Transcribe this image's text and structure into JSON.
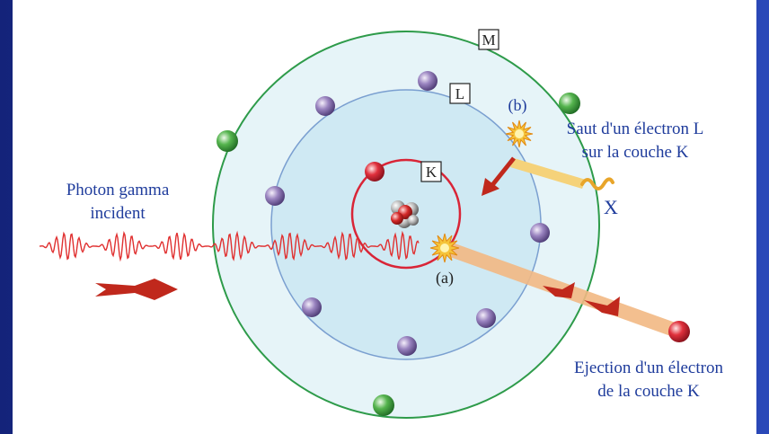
{
  "shells": {
    "k": {
      "label": "K"
    },
    "l": {
      "label": "L"
    },
    "m": {
      "label": "M"
    }
  },
  "labels": {
    "photon_line1": "Photon gamma",
    "photon_line2": "incident",
    "marker_a": "(a)",
    "marker_b": "(b)",
    "jump_line1": "Saut d'un électron L",
    "jump_line2": "sur la couche K",
    "xray": "X",
    "ejection_line1": "Ejection d'un électron",
    "ejection_line2": "de la couche K"
  },
  "colors": {
    "background": "#1b2f8f",
    "outer_disc": "#e6f4f8",
    "inner_disc": "#cce8f2",
    "shell_m_stroke": "#2e9b4a",
    "shell_l_stroke": "#7a9fd0",
    "shell_k_stroke": "#d92537",
    "electron_l": "#8a74b0",
    "electron_m": "#4aa84a",
    "electron_k": "#e0303c",
    "photon_wave": "#e03030",
    "arrow": "#c0281c",
    "beam": "#f2b883",
    "text_blue": "#1f3c9c"
  },
  "icons": [
    "nucleus-icon",
    "collision-burst-icon",
    "xray-wave-icon"
  ]
}
